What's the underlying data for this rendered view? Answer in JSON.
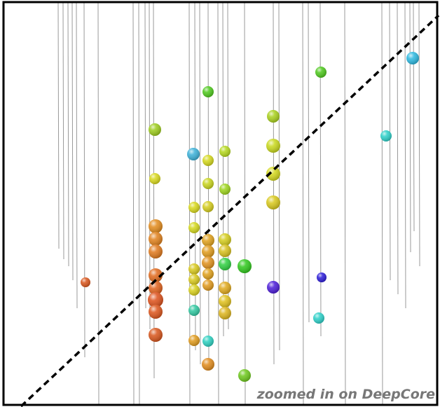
{
  "caption": "zoomed in on DeepCore"
}
